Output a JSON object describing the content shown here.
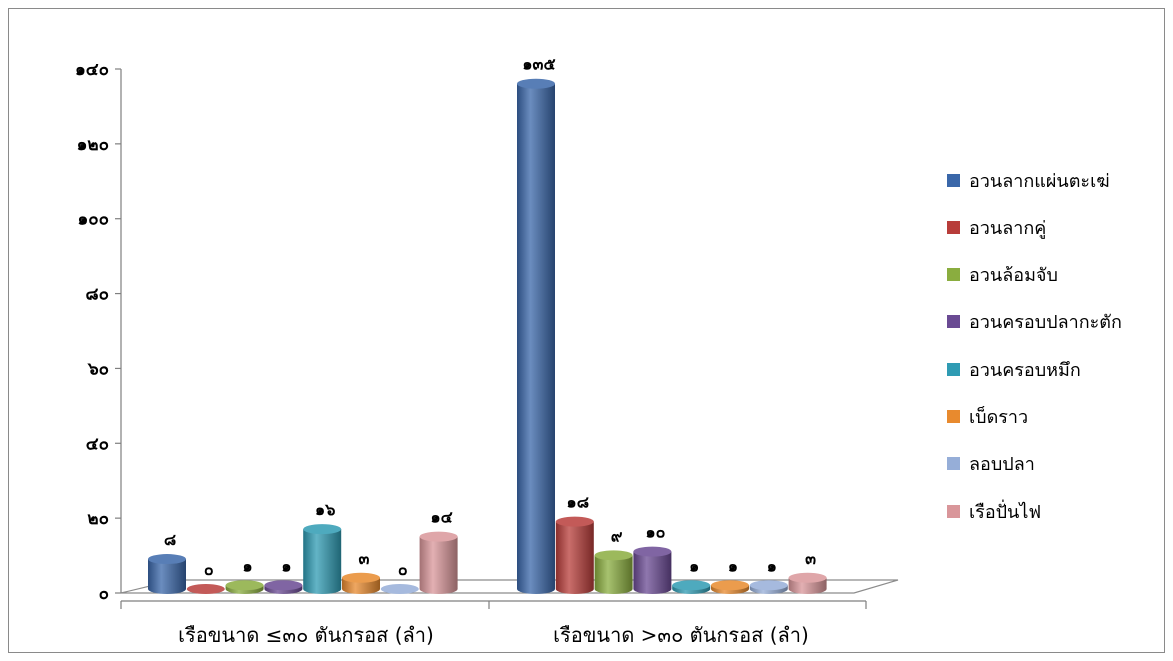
{
  "chart_data": {
    "type": "bar",
    "style": "3d-cylinder",
    "categories": [
      "เรือขนาด ≤๓๐ ตันกรอส (ลำ)",
      "เรือขนาด >๓๐ ตันกรอส (ลำ)"
    ],
    "series": [
      {
        "name": "อวนลากแผ่นตะเฆ่",
        "color": "#3a67a9",
        "values": [
          8,
          135
        ],
        "labels": [
          "๘",
          "๑๓๕"
        ]
      },
      {
        "name": "อวนลากคู่",
        "color": "#b83d3a",
        "values": [
          0,
          18
        ],
        "labels": [
          "๐",
          "๑๘"
        ]
      },
      {
        "name": "อวนล้อมจับ",
        "color": "#8aad3f",
        "values": [
          1,
          9
        ],
        "labels": [
          "๑",
          "๙"
        ]
      },
      {
        "name": "อวนครอบปลากะตัก",
        "color": "#6a4a93",
        "values": [
          1,
          10
        ],
        "labels": [
          "๑",
          "๑๐"
        ]
      },
      {
        "name": "อวนครอบหมึก",
        "color": "#2f9bb3",
        "values": [
          16,
          1
        ],
        "labels": [
          "๑๖",
          "๑"
        ]
      },
      {
        "name": "เบ็ดราว",
        "color": "#e88a2e",
        "values": [
          3,
          1
        ],
        "labels": [
          "๓",
          "๑"
        ]
      },
      {
        "name": "ลอบปลา",
        "color": "#96aed8",
        "values": [
          0,
          1
        ],
        "labels": [
          "๐",
          "๑"
        ]
      },
      {
        "name": "เรือปั่นไฟ",
        "color": "#d9969a",
        "values": [
          14,
          3
        ],
        "labels": [
          "๑๔",
          "๓"
        ]
      }
    ],
    "yticks": [
      0,
      20,
      40,
      60,
      80,
      100,
      120,
      140
    ],
    "ytick_labels": [
      "๐",
      "๒๐",
      "๔๐",
      "๖๐",
      "๘๐",
      "๑๐๐",
      "๑๒๐",
      "๑๔๐"
    ],
    "ylim": [
      0,
      140
    ],
    "grid": false,
    "legend_position": "right",
    "title": "",
    "xlabel": "",
    "ylabel": ""
  }
}
